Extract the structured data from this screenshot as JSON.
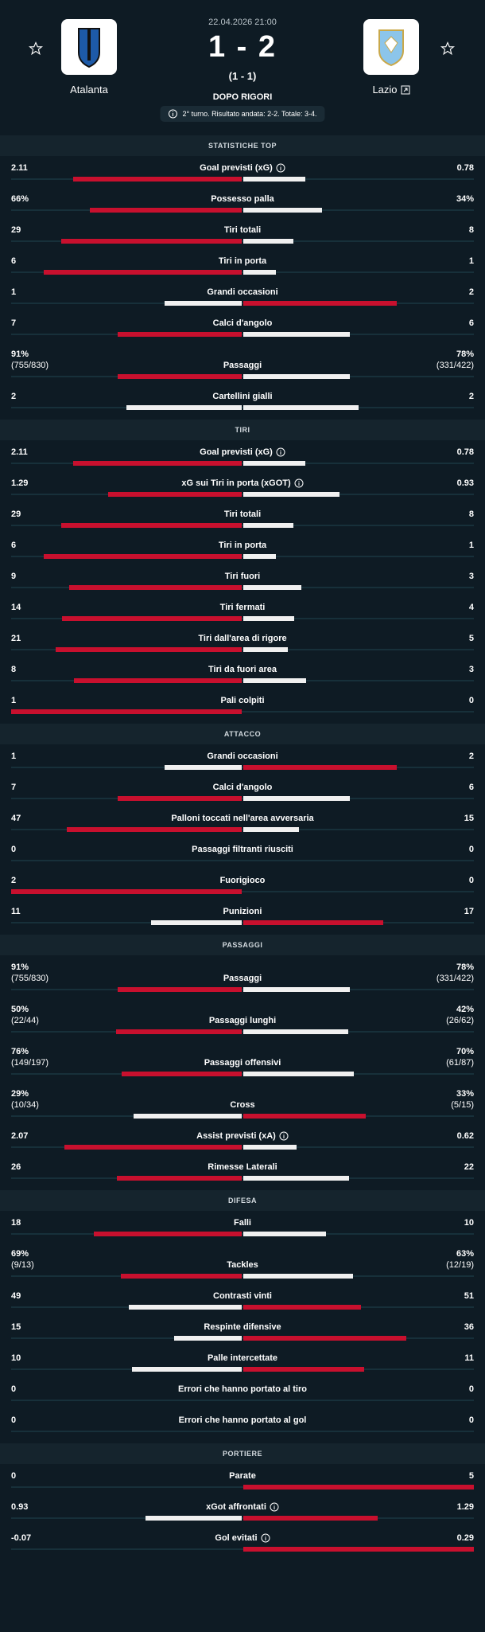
{
  "header": {
    "date": "22.04.2026 21:00",
    "home": {
      "name": "Atalanta"
    },
    "away": {
      "name": "Lazio"
    },
    "score": "1 - 2",
    "halftime": "(1 - 1)",
    "status": "DOPO RIGORI",
    "note": "2° turno. Risultato andata: 2-2. Totale: 3-4."
  },
  "sections": [
    {
      "title": "STATISTICHE TOP",
      "stats": [
        {
          "name": "Goal previsti (xG)",
          "home": "2.11",
          "away": "0.78",
          "info": true
        },
        {
          "name": "Possesso palla",
          "home": "66%",
          "away": "34%"
        },
        {
          "name": "Tiri totali",
          "home": "29",
          "away": "8"
        },
        {
          "name": "Tiri in porta",
          "home": "6",
          "away": "1"
        },
        {
          "name": "Grandi occasioni",
          "home": "1",
          "away": "2"
        },
        {
          "name": "Calci d'angolo",
          "home": "7",
          "away": "6"
        },
        {
          "name": "Passaggi",
          "home": "91%",
          "home_detail": "(755/830)",
          "away": "78%",
          "away_detail": "(331/422)"
        },
        {
          "name": "Cartellini gialli",
          "home": "2",
          "away": "2"
        }
      ]
    },
    {
      "title": "TIRI",
      "stats": [
        {
          "name": "Goal previsti (xG)",
          "home": "2.11",
          "away": "0.78",
          "info": true
        },
        {
          "name": "xG sui Tiri in porta (xGOT)",
          "home": "1.29",
          "away": "0.93",
          "info": true
        },
        {
          "name": "Tiri totali",
          "home": "29",
          "away": "8"
        },
        {
          "name": "Tiri in porta",
          "home": "6",
          "away": "1"
        },
        {
          "name": "Tiri fuori",
          "home": "9",
          "away": "3"
        },
        {
          "name": "Tiri fermati",
          "home": "14",
          "away": "4"
        },
        {
          "name": "Tiri dall'area di rigore",
          "home": "21",
          "away": "5"
        },
        {
          "name": "Tiri da fuori area",
          "home": "8",
          "away": "3"
        },
        {
          "name": "Pali colpiti",
          "home": "1",
          "away": "0"
        }
      ]
    },
    {
      "title": "ATTACCO",
      "stats": [
        {
          "name": "Grandi occasioni",
          "home": "1",
          "away": "2"
        },
        {
          "name": "Calci d'angolo",
          "home": "7",
          "away": "6"
        },
        {
          "name": "Palloni toccati nell'area avversaria",
          "home": "47",
          "away": "15"
        },
        {
          "name": "Passaggi filtranti riusciti",
          "home": "0",
          "away": "0"
        },
        {
          "name": "Fuorigioco",
          "home": "2",
          "away": "0"
        },
        {
          "name": "Punizioni",
          "home": "11",
          "away": "17"
        }
      ]
    },
    {
      "title": "PASSAGGI",
      "stats": [
        {
          "name": "Passaggi",
          "home": "91%",
          "home_detail": "(755/830)",
          "away": "78%",
          "away_detail": "(331/422)"
        },
        {
          "name": "Passaggi lunghi",
          "home": "50%",
          "home_detail": "(22/44)",
          "away": "42%",
          "away_detail": "(26/62)"
        },
        {
          "name": "Passaggi offensivi",
          "home": "76%",
          "home_detail": "(149/197)",
          "away": "70%",
          "away_detail": "(61/87)"
        },
        {
          "name": "Cross",
          "home": "29%",
          "home_detail": "(10/34)",
          "away": "33%",
          "away_detail": "(5/15)"
        },
        {
          "name": "Assist previsti (xA)",
          "home": "2.07",
          "away": "0.62",
          "info": true
        },
        {
          "name": "Rimesse Laterali",
          "home": "26",
          "away": "22"
        }
      ]
    },
    {
      "title": "DIFESA",
      "stats": [
        {
          "name": "Falli",
          "home": "18",
          "away": "10"
        },
        {
          "name": "Tackles",
          "home": "69%",
          "home_detail": "(9/13)",
          "away": "63%",
          "away_detail": "(12/19)"
        },
        {
          "name": "Contrasti vinti",
          "home": "49",
          "away": "51"
        },
        {
          "name": "Respinte difensive",
          "home": "15",
          "away": "36"
        },
        {
          "name": "Palle intercettate",
          "home": "10",
          "away": "11"
        },
        {
          "name": "Errori che hanno portato al tiro",
          "home": "0",
          "away": "0"
        },
        {
          "name": "Errori che hanno portato al gol",
          "home": "0",
          "away": "0"
        }
      ]
    },
    {
      "title": "PORTIERE",
      "stats": [
        {
          "name": "Parate",
          "home": "0",
          "away": "5"
        },
        {
          "name": "xGot affrontati",
          "home": "0.93",
          "away": "1.29",
          "info": true
        },
        {
          "name": "Gol evitati",
          "home": "-0.07",
          "away": "0.29",
          "info": true
        }
      ]
    }
  ]
}
